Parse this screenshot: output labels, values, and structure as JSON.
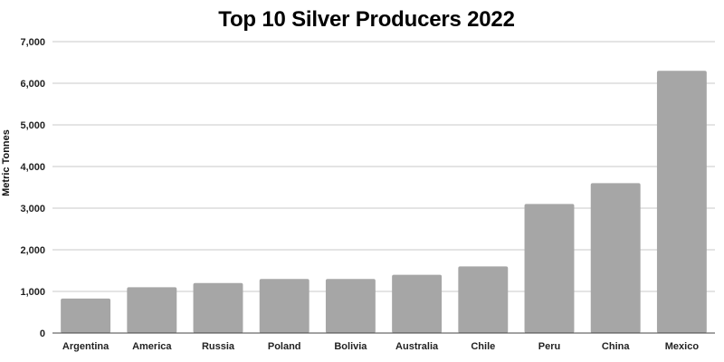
{
  "chart_data": {
    "type": "bar",
    "title": "Top 10 Silver Producers 2022",
    "xlabel": "",
    "ylabel": "Metric Tonnes",
    "categories": [
      "Argentina",
      "America",
      "Russia",
      "Poland",
      "Bolivia",
      "Australia",
      "Chile",
      "Peru",
      "China",
      "Mexico"
    ],
    "values": [
      830,
      1100,
      1200,
      1300,
      1300,
      1400,
      1600,
      3100,
      3600,
      6300
    ],
    "ylim": [
      0,
      7000
    ],
    "yticks": [
      0,
      1000,
      2000,
      3000,
      4000,
      5000,
      6000,
      7000
    ],
    "ytick_labels": [
      "0",
      "1,000",
      "2,000",
      "3,000",
      "4,000",
      "5,000",
      "6,000",
      "7,000"
    ],
    "grid": true,
    "legend": "none",
    "colors": {
      "bar": "#a6a6a6",
      "grid": "#c8c8c8",
      "axis": "#444444"
    }
  }
}
